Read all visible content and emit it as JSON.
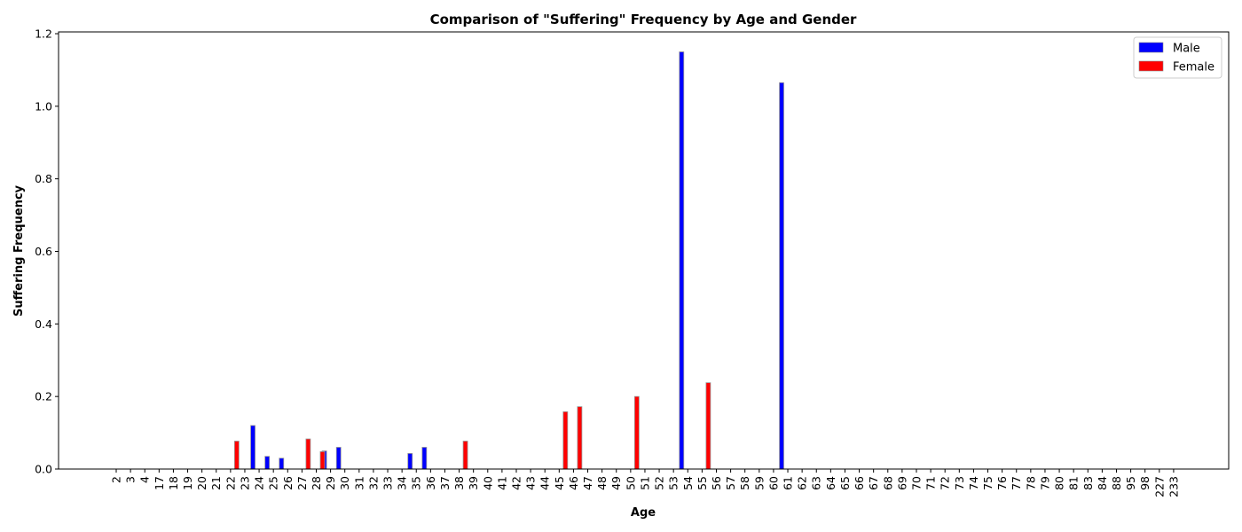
{
  "chart_data": {
    "type": "bar",
    "title": "Comparison of \"Suffering\" Frequency by Age and Gender",
    "xlabel": "Age",
    "ylabel": "Suffering Frequency",
    "ylim": [
      0,
      1.2
    ],
    "yticks": [
      "0.0",
      "0.2",
      "0.4",
      "0.6",
      "0.8",
      "1.0",
      "1.2"
    ],
    "grid": false,
    "legend_position": "top-right",
    "categories": [
      "2",
      "3",
      "4",
      "17",
      "18",
      "19",
      "20",
      "21",
      "22",
      "23",
      "24",
      "25",
      "26",
      "27",
      "28",
      "29",
      "30",
      "31",
      "32",
      "33",
      "34",
      "35",
      "36",
      "37",
      "38",
      "39",
      "40",
      "41",
      "42",
      "43",
      "44",
      "45",
      "46",
      "47",
      "48",
      "49",
      "50",
      "51",
      "52",
      "53",
      "54",
      "55",
      "56",
      "57",
      "58",
      "59",
      "60",
      "61",
      "62",
      "63",
      "64",
      "65",
      "66",
      "67",
      "68",
      "69",
      "70",
      "71",
      "72",
      "73",
      "74",
      "75",
      "76",
      "77",
      "78",
      "79",
      "80",
      "81",
      "83",
      "84",
      "88",
      "95",
      "98",
      "227",
      "233"
    ],
    "series": [
      {
        "name": "Male",
        "color": "#0000ff",
        "values": [
          0,
          0,
          0,
          0,
          0,
          0,
          0,
          0,
          0,
          0,
          0.12,
          0.035,
          0.03,
          0,
          0,
          0.05,
          0.06,
          0,
          0,
          0,
          0,
          0.043,
          0.06,
          0,
          0,
          0,
          0,
          0,
          0,
          0,
          0,
          0,
          0,
          0,
          0,
          0,
          0,
          0,
          0,
          0,
          1.15,
          0,
          0,
          0,
          0,
          0,
          0,
          1.065,
          0,
          0,
          0,
          0,
          0,
          0,
          0,
          0,
          0,
          0,
          0,
          0,
          0,
          0,
          0,
          0,
          0,
          0,
          0,
          0,
          0,
          0,
          0,
          0,
          0,
          0,
          0
        ]
      },
      {
        "name": "Female",
        "color": "#ff0000",
        "values": [
          0,
          0,
          0,
          0,
          0,
          0,
          0,
          0,
          0.077,
          0,
          0,
          0,
          0,
          0.083,
          0.048,
          0,
          0,
          0,
          0,
          0,
          0,
          0,
          0,
          0,
          0.077,
          0,
          0,
          0,
          0,
          0,
          0,
          0.158,
          0.172,
          0,
          0,
          0,
          0.2,
          0,
          0,
          0,
          0,
          0.238,
          0,
          0,
          0,
          0,
          0,
          0,
          0,
          0,
          0,
          0,
          0,
          0,
          0,
          0,
          0,
          0,
          0,
          0,
          0,
          0,
          0,
          0,
          0,
          0,
          0,
          0,
          0,
          0,
          0,
          0,
          0,
          0,
          0
        ]
      }
    ]
  }
}
